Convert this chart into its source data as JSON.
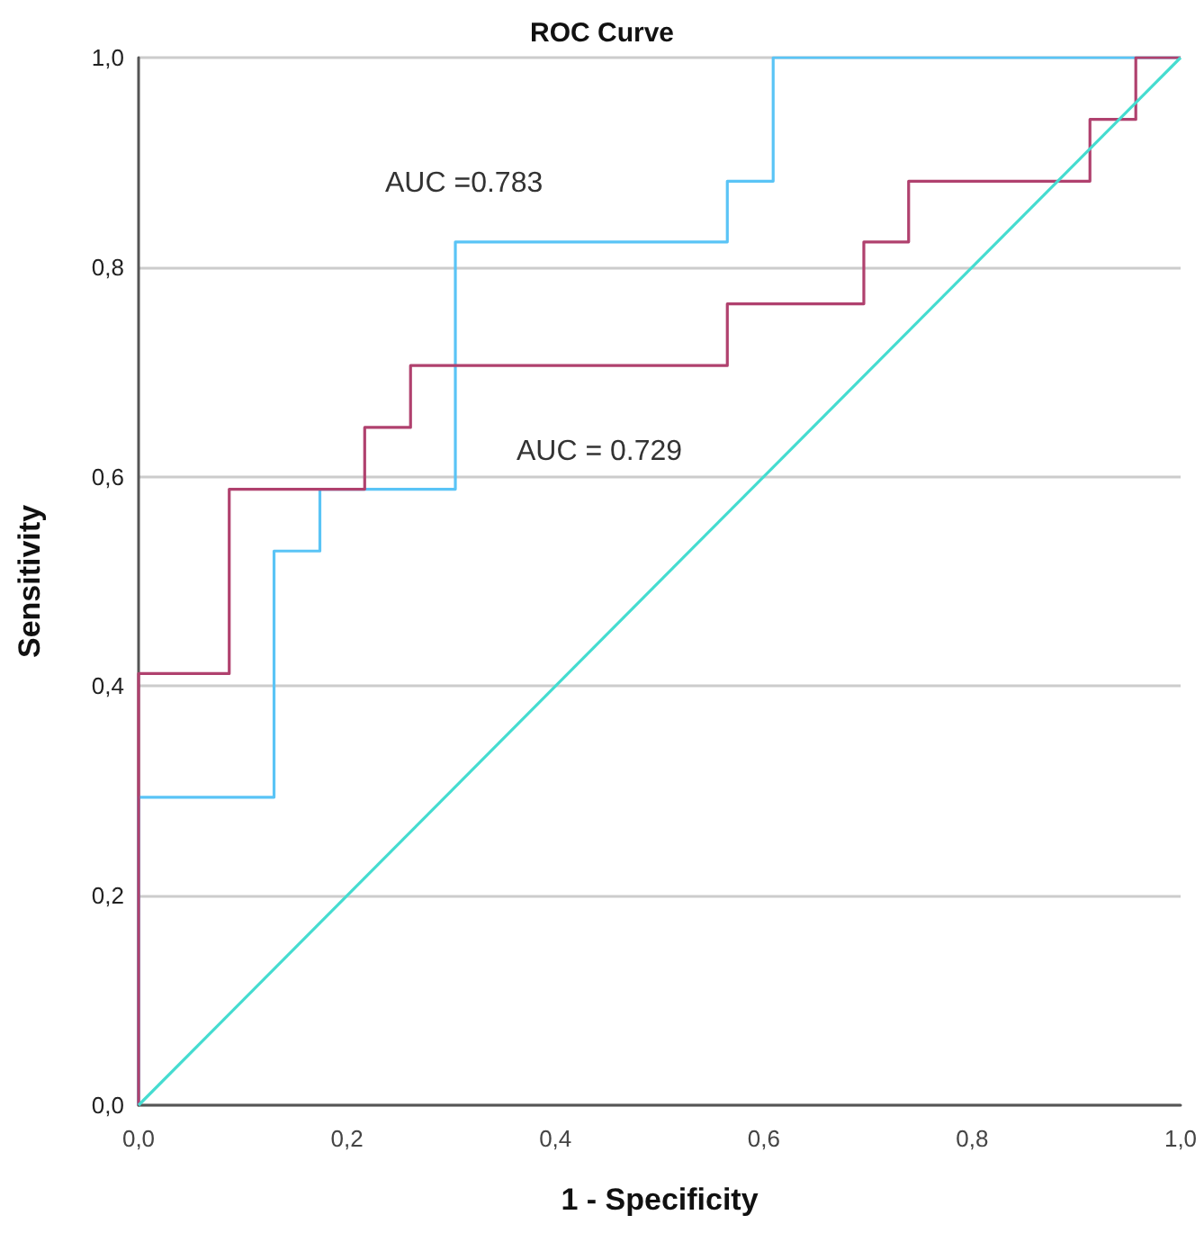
{
  "chart_data": {
    "type": "line",
    "title": "ROC Curve",
    "xlabel": "1 - Specificity",
    "ylabel": "Sensitivity",
    "series": [
      {
        "color": "#5ac4f6",
        "x": [
          0,
          0,
          0.13,
          0.13,
          0.174,
          0.174,
          0.304,
          0.304,
          0.565,
          0.565,
          0.609,
          0.609,
          1
        ],
        "values": [
          0,
          0.294,
          0.294,
          0.529,
          0.529,
          0.588,
          0.588,
          0.824,
          0.824,
          0.882,
          0.882,
          1,
          1
        ]
      },
      {
        "color": "#b0416e",
        "x": [
          0,
          0,
          0.087,
          0.087,
          0.217,
          0.217,
          0.261,
          0.261,
          0.565,
          0.565,
          0.696,
          0.696,
          0.739,
          0.739,
          0.913,
          0.913,
          0.957,
          0.957,
          1
        ],
        "values": [
          0,
          0.412,
          0.412,
          0.588,
          0.588,
          0.647,
          0.647,
          0.706,
          0.706,
          0.765,
          0.765,
          0.824,
          0.824,
          0.882,
          0.882,
          0.941,
          0.941,
          1,
          1
        ]
      },
      {
        "color": "#45dcd0",
        "x": [
          0,
          1
        ],
        "values": [
          0,
          1
        ]
      }
    ],
    "annotations": [
      "AUC =0.783",
      "AUC = 0.729"
    ],
    "xlim": [
      0,
      1
    ],
    "ylim": [
      0,
      1
    ],
    "xticks": [
      {
        "value": 0,
        "label": "0,0"
      },
      {
        "value": 0.2,
        "label": "0,2"
      },
      {
        "value": 0.4,
        "label": "0,4"
      },
      {
        "value": 0.6,
        "label": "0,6"
      },
      {
        "value": 0.8,
        "label": "0,8"
      },
      {
        "value": 1,
        "label": "1,0"
      }
    ],
    "yticks": [
      {
        "value": 0,
        "label": "0,0"
      },
      {
        "value": 0.2,
        "label": "0,2"
      },
      {
        "value": 0.4,
        "label": "0,4"
      },
      {
        "value": 0.6,
        "label": "0,6"
      },
      {
        "value": 0.8,
        "label": "0,8"
      },
      {
        "value": 1,
        "label": "1,0"
      }
    ],
    "grid": "y",
    "marker": "none",
    "line_style": "solid"
  }
}
